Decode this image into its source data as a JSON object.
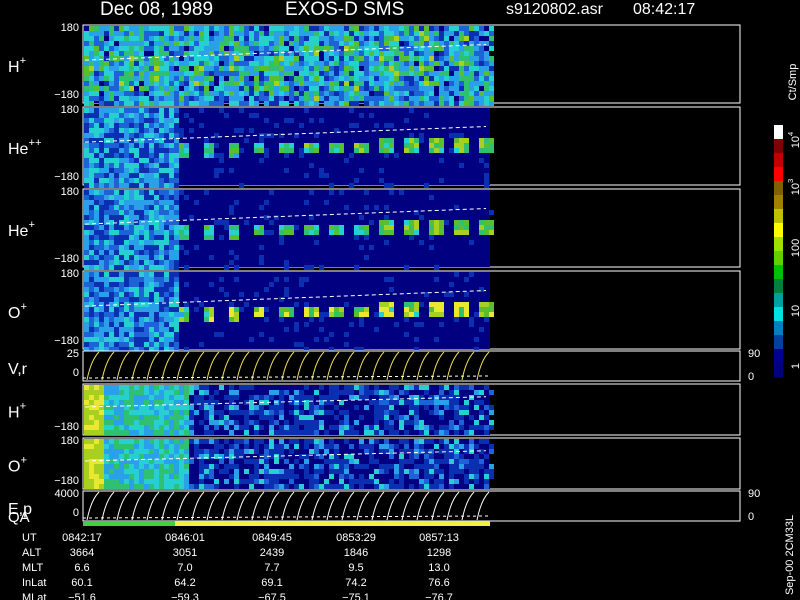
{
  "header": {
    "date": "Dec 08, 1989",
    "instrument": "EXOS-D SMS",
    "file": "s9120802.asr",
    "time": "08:42:17"
  },
  "panels": [
    {
      "name": "H",
      "charge": "+",
      "top": "180",
      "bottom": "−180"
    },
    {
      "name": "He",
      "charge": "++",
      "top": "180",
      "bottom": "−180"
    },
    {
      "name": "He",
      "charge": "+",
      "top": "180",
      "bottom": "−180"
    },
    {
      "name": "O",
      "charge": "+",
      "top": "180",
      "bottom": "−180"
    },
    {
      "name": "V,r",
      "top": "25",
      "bottom": "0",
      "right_top": "90",
      "right_bottom": "0"
    },
    {
      "name": "H",
      "charge": "+",
      "bottom": "−180"
    },
    {
      "name": "O",
      "charge": "+",
      "top": "180",
      "bottom": "−180"
    },
    {
      "name": "E,p",
      "top": "4000",
      "bottom": "0",
      "right_top": "90",
      "right_bottom": "0"
    }
  ],
  "qa_label": "QA",
  "colorbar": {
    "unit": "Ct/Smp",
    "labels": [
      {
        "base": "10",
        "exp": "4"
      },
      {
        "base": "10",
        "exp": "3"
      },
      {
        "base": "100"
      },
      {
        "base": "10"
      },
      {
        "base": "1"
      }
    ]
  },
  "footer": {
    "rows": [
      {
        "label": "UT",
        "values": [
          "0842:17",
          "0846:01",
          "0849:45",
          "0853:29",
          "0857:13"
        ]
      },
      {
        "label": "ALT",
        "values": [
          "3664",
          "3051",
          "2439",
          "1846",
          "1298"
        ]
      },
      {
        "label": "MLT",
        "values": [
          "6.6",
          "7.0",
          "7.7",
          "9.5",
          "13.0"
        ]
      },
      {
        "label": "InLat",
        "values": [
          "60.1",
          "64.2",
          "69.1",
          "74.2",
          "76.6"
        ]
      },
      {
        "label": "MLat",
        "values": [
          "−51.6",
          "−59.3",
          "−67.5",
          "−75.1",
          "−76.7"
        ]
      }
    ],
    "stamp": "Sep-00 2CM33L"
  }
}
